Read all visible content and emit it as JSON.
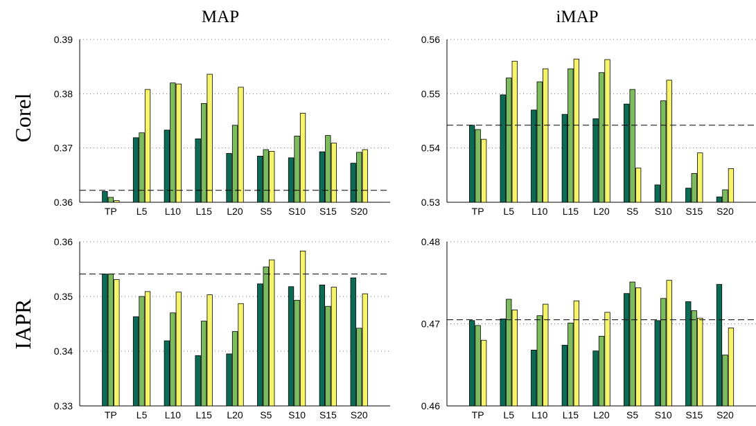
{
  "column_titles": [
    "MAP",
    "iMAP"
  ],
  "row_labels": [
    "Corel",
    "IAPR"
  ],
  "colors": {
    "series_1": "#0b6b55",
    "series_2": "#7cbc5f",
    "series_3": "#f6f46b",
    "reference": "#000000"
  },
  "chart_data": [
    {
      "type": "bar",
      "categories": [
        "TP",
        "L5",
        "L10",
        "L15",
        "L20",
        "S5",
        "S10",
        "S15",
        "S20"
      ],
      "series": [
        {
          "values": [
            0.362,
            0.3719,
            0.3733,
            0.3717,
            0.369,
            0.3685,
            0.3682,
            0.3693,
            0.3672
          ]
        },
        {
          "values": [
            0.3609,
            0.3728,
            0.382,
            0.3782,
            0.3742,
            0.3697,
            0.3722,
            0.3723,
            0.3692
          ]
        },
        {
          "values": [
            0.3603,
            0.3808,
            0.3818,
            0.3836,
            0.3812,
            0.3694,
            0.3764,
            0.3709,
            0.3697
          ]
        }
      ],
      "reference_line": 0.3622,
      "ylim": [
        0.36,
        0.39
      ],
      "yticks": [
        "0.36",
        "0.37",
        "0.38",
        "0.39"
      ],
      "grid": "dotted horizontal"
    },
    {
      "type": "bar",
      "categories": [
        "TP",
        "L5",
        "L10",
        "L15",
        "L20",
        "S5",
        "S10",
        "S15",
        "S20"
      ],
      "series": [
        {
          "values": [
            0.5442,
            0.5498,
            0.547,
            0.5462,
            0.5454,
            0.5481,
            0.5332,
            0.5326,
            0.531
          ]
        },
        {
          "values": [
            0.5434,
            0.5529,
            0.5522,
            0.5546,
            0.5539,
            0.5508,
            0.5487,
            0.5353,
            0.5323
          ]
        },
        {
          "values": [
            0.5416,
            0.556,
            0.5546,
            0.5564,
            0.5563,
            0.5363,
            0.5525,
            0.5391,
            0.5362
          ]
        }
      ],
      "reference_line": 0.5442,
      "ylim": [
        0.53,
        0.56
      ],
      "yticks": [
        "0.53",
        "0.54",
        "0.55",
        "0.56"
      ],
      "grid": "dotted horizontal"
    },
    {
      "type": "bar",
      "categories": [
        "TP",
        "L5",
        "L10",
        "L15",
        "L20",
        "S5",
        "S10",
        "S15",
        "S20"
      ],
      "series": [
        {
          "values": [
            0.3541,
            0.3463,
            0.3419,
            0.3392,
            0.3395,
            0.3523,
            0.3518,
            0.3521,
            0.3534
          ]
        },
        {
          "values": [
            0.3541,
            0.35,
            0.347,
            0.3455,
            0.3436,
            0.3554,
            0.3493,
            0.3482,
            0.3442
          ]
        },
        {
          "values": [
            0.3531,
            0.3509,
            0.3508,
            0.3503,
            0.3487,
            0.3567,
            0.3583,
            0.3517,
            0.3505
          ]
        }
      ],
      "reference_line": 0.3541,
      "ylim": [
        0.33,
        0.36
      ],
      "yticks": [
        "0.33",
        "0.34",
        "0.35",
        "0.36"
      ],
      "grid": "dotted horizontal"
    },
    {
      "type": "bar",
      "categories": [
        "TP",
        "L5",
        "L10",
        "L15",
        "L20",
        "S5",
        "S10",
        "S15",
        "S20"
      ],
      "series": [
        {
          "values": [
            0.4704,
            0.4706,
            0.4668,
            0.4674,
            0.4667,
            0.4737,
            0.4704,
            0.4727,
            0.4748
          ]
        },
        {
          "values": [
            0.4698,
            0.473,
            0.471,
            0.4701,
            0.4685,
            0.4751,
            0.4731,
            0.4716,
            0.4662
          ]
        },
        {
          "values": [
            0.468,
            0.4717,
            0.4724,
            0.4728,
            0.4714,
            0.4744,
            0.4753,
            0.4707,
            0.4695
          ]
        }
      ],
      "reference_line": 0.4705,
      "ylim": [
        0.46,
        0.48
      ],
      "yticks": [
        "0.46",
        "0.47",
        "0.48"
      ],
      "grid": "dotted horizontal"
    }
  ]
}
